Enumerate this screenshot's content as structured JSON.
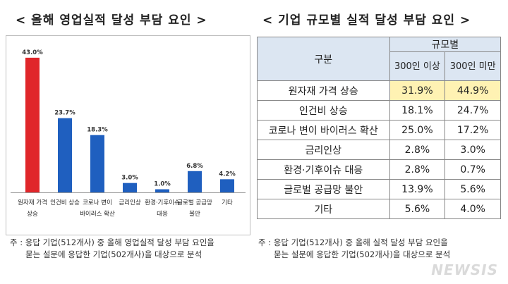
{
  "left": {
    "title": "< 올해 영업실적 달성 부담 요인 >",
    "note_line1": "주 : 응답 기업(512개사) 중 올해 영업실적 달성 부담 요인을",
    "note_line2": "묻는 설문에 응답한 기업(502개사)을 대상으로 분석"
  },
  "right": {
    "title": "< 기업 규모별 실적 달성 부담 요인 >",
    "header": {
      "category": "구분",
      "group": "규모별",
      "col1": "300인 이상",
      "col2": "300인 미만"
    },
    "rows": [
      {
        "label": "원자재 가격 상승",
        "v1": "31.9%",
        "v2": "44.9%"
      },
      {
        "label": "인건비 상승",
        "v1": "18.1%",
        "v2": "24.7%"
      },
      {
        "label": "코로나 변이 바이러스 확산",
        "v1": "25.0%",
        "v2": "17.2%"
      },
      {
        "label": "금리인상",
        "v1": "2.8%",
        "v2": "3.0%"
      },
      {
        "label": "환경·기후이슈 대응",
        "v1": "2.8%",
        "v2": "0.7%"
      },
      {
        "label": "글로벌 공급망 불안",
        "v1": "13.9%",
        "v2": "5.6%"
      },
      {
        "label": "기타",
        "v1": "5.6%",
        "v2": "4.0%"
      }
    ],
    "note_line1": "주 : 응답 기업(512개사) 중 올해 실적 달성 부담 요인을",
    "note_line2": "묻는 설문에 응답한 기업(502개사)을 대상으로 분석"
  },
  "watermark": "NEWSIS",
  "chart_data": {
    "type": "bar",
    "categories": [
      [
        "원자재 가격",
        "상승"
      ],
      [
        "인건비 상승"
      ],
      [
        "코로나 변이",
        "바이러스 확산"
      ],
      [
        "금리인상"
      ],
      [
        "환경·기후이슈",
        "대응"
      ],
      [
        "글로벌 공급망",
        "불안"
      ],
      [
        "기타"
      ]
    ],
    "values": [
      43.0,
      23.7,
      18.3,
      3.0,
      1.0,
      6.8,
      4.2
    ],
    "value_labels": [
      "43.0%",
      "23.7%",
      "18.3%",
      "3.0%",
      "1.0%",
      "6.8%",
      "4.2%"
    ],
    "colors": [
      "#e0262a",
      "#1f5fbf",
      "#1f5fbf",
      "#1f5fbf",
      "#1f5fbf",
      "#1f5fbf",
      "#1f5fbf"
    ],
    "ylim": [
      0,
      45
    ],
    "grid": false
  }
}
